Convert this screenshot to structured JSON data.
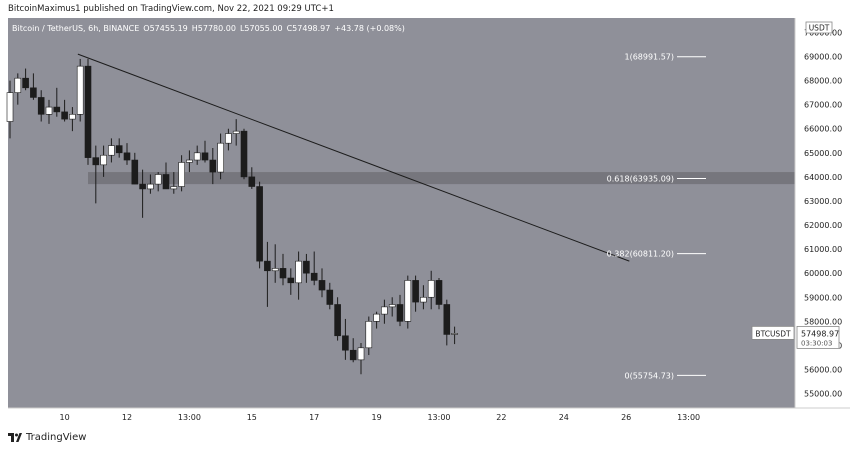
{
  "published": "BitcoinMaximus1 published on TradingView.com, Nov 22, 2021 09:29 UTC+1",
  "footer": {
    "brand": "TradingView",
    "logo_icon": "tradingview-logo-icon"
  },
  "colors": {
    "plot_bg": "#8f9099",
    "axis_bg": "#ffffff",
    "candle_up": "#ffffff",
    "candle_down": "#1c1c1c",
    "zone": "#76767d",
    "trendline": "#1c1c1c",
    "fib_line": "#ffffff",
    "text_light": "#ffffff",
    "text_dark": "#222222"
  },
  "header": {
    "symbol": "Bitcoin / TetherUS, 6h, BINANCE",
    "ohlc": [
      {
        "key": "O",
        "value": "57455.19"
      },
      {
        "key": "H",
        "value": "57780.00"
      },
      {
        "key": "L",
        "value": "57055.00"
      },
      {
        "key": "C",
        "value": "57498.97"
      }
    ],
    "change": "+43.78 (+0.08%)"
  },
  "price_tag": {
    "label": "BTCUSDT",
    "price": "57498.97",
    "countdown": "03:30:03"
  },
  "currency_label": "USDT",
  "chart_data": {
    "type": "candlestick",
    "title": "Bitcoin / TetherUS, 6h, BINANCE",
    "ylim": [
      54400,
      70600
    ],
    "y_ticks": [
      "55000.00",
      "56000.00",
      "57000.00",
      "58000.00",
      "59000.00",
      "60000.00",
      "61000.00",
      "62000.00",
      "63000.00",
      "64000.00",
      "65000.00",
      "66000.00",
      "67000.00",
      "68000.00",
      "69000.00",
      "70000.00"
    ],
    "x_ticks": [
      {
        "label": "10",
        "i": 7
      },
      {
        "label": "12",
        "i": 15
      },
      {
        "label": "13:00",
        "i": 23
      },
      {
        "label": "15",
        "i": 31
      },
      {
        "label": "17",
        "i": 39
      },
      {
        "label": "19",
        "i": 47
      },
      {
        "label": "13:00",
        "i": 55
      },
      {
        "label": "22",
        "i": 63
      },
      {
        "label": "24",
        "i": 71
      },
      {
        "label": "26",
        "i": 79
      },
      {
        "label": "13:00",
        "i": 87
      }
    ],
    "candles": [
      [
        66300,
        68000,
        65600,
        67500
      ],
      [
        67500,
        68300,
        67000,
        68100
      ],
      [
        68100,
        68500,
        67600,
        67700
      ],
      [
        67700,
        68300,
        67200,
        67300
      ],
      [
        67300,
        67600,
        66300,
        66600
      ],
      [
        66600,
        67200,
        66200,
        66900
      ],
      [
        66900,
        67700,
        66500,
        66700
      ],
      [
        66700,
        67200,
        66300,
        66400
      ],
      [
        66400,
        66900,
        65900,
        66600
      ],
      [
        66600,
        68900,
        66300,
        68600
      ],
      [
        68600,
        68900,
        64500,
        64800
      ],
      [
        64800,
        65300,
        62900,
        64500
      ],
      [
        64500,
        65300,
        64000,
        64900
      ],
      [
        64900,
        65600,
        64600,
        65300
      ],
      [
        65300,
        65600,
        64800,
        65000
      ],
      [
        65000,
        65400,
        64500,
        64700
      ],
      [
        64700,
        65000,
        63700,
        63700
      ],
      [
        63700,
        64300,
        62300,
        63500
      ],
      [
        63500,
        64100,
        63300,
        63700
      ],
      [
        63700,
        64200,
        63400,
        64100
      ],
      [
        64100,
        64600,
        63500,
        63500
      ],
      [
        63500,
        64200,
        63300,
        63600
      ],
      [
        63600,
        64900,
        63400,
        64600
      ],
      [
        64600,
        65100,
        64200,
        64700
      ],
      [
        64700,
        65300,
        64500,
        65000
      ],
      [
        65000,
        65500,
        64600,
        64700
      ],
      [
        64700,
        65200,
        63700,
        64200
      ],
      [
        64200,
        65800,
        63900,
        65400
      ],
      [
        65400,
        66000,
        65100,
        65800
      ],
      [
        65800,
        66400,
        65300,
        65900
      ],
      [
        65900,
        66000,
        63900,
        64000
      ],
      [
        64000,
        64400,
        63500,
        63600
      ],
      [
        63600,
        63800,
        60200,
        60500
      ],
      [
        60500,
        61300,
        58600,
        60100
      ],
      [
        60100,
        61200,
        59600,
        60200
      ],
      [
        60200,
        60800,
        59500,
        59800
      ],
      [
        59800,
        60200,
        59100,
        59600
      ],
      [
        59600,
        60900,
        58900,
        60500
      ],
      [
        60500,
        60800,
        59600,
        60000
      ],
      [
        60000,
        60900,
        59500,
        59700
      ],
      [
        59700,
        60200,
        59000,
        59300
      ],
      [
        59300,
        59600,
        58500,
        58700
      ],
      [
        58700,
        59000,
        57200,
        57400
      ],
      [
        57400,
        58100,
        56400,
        56800
      ],
      [
        56800,
        57300,
        56300,
        56400
      ],
      [
        56400,
        57100,
        55800,
        56900
      ],
      [
        56900,
        58200,
        56600,
        58000
      ],
      [
        58000,
        58400,
        57700,
        58300
      ],
      [
        58300,
        58900,
        57900,
        58600
      ],
      [
        58600,
        59000,
        58200,
        58700
      ],
      [
        58700,
        59100,
        57800,
        58000
      ],
      [
        58000,
        59900,
        57700,
        59700
      ],
      [
        59700,
        59900,
        58400,
        58800
      ],
      [
        58800,
        59500,
        58500,
        59000
      ],
      [
        59000,
        60100,
        58500,
        59700
      ],
      [
        59700,
        59800,
        58500,
        58700
      ],
      [
        58700,
        58900,
        57000,
        57455
      ],
      [
        57455,
        57780,
        57055,
        57499
      ]
    ],
    "trendline": [
      {
        "i": 8.7,
        "price": 69100
      },
      {
        "i": 79.4,
        "price": 60500
      }
    ],
    "zone": {
      "price_from": 63700,
      "price_to": 64200
    },
    "fib_levels": [
      {
        "label": "1(68991.57)",
        "price": 68991.57
      },
      {
        "label": "0.618(63935.09)",
        "price": 63935.09
      },
      {
        "label": "0.382(60811.20)",
        "price": 60811.2
      },
      {
        "label": "0(55754.73)",
        "price": 55754.73
      }
    ]
  }
}
